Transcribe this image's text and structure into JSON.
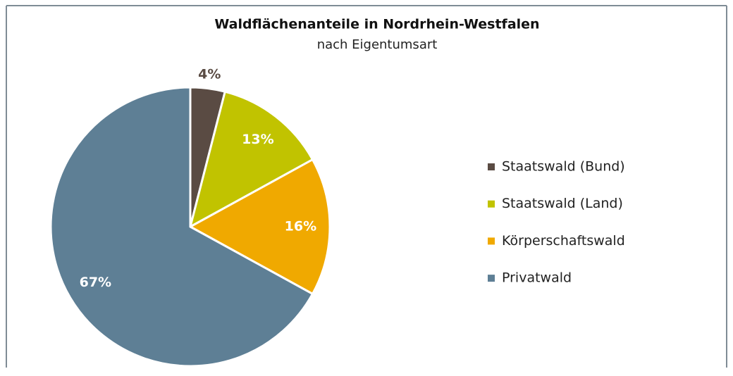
{
  "chart_data": {
    "type": "pie",
    "title": "Waldflächenanteile in Nordrhein-Westfalen",
    "subtitle": "nach Eigentumsart",
    "categories": [
      "Staatswald (Bund)",
      "Staatswald (Land)",
      "Körperschaftswald",
      "Privatwald"
    ],
    "values": [
      4,
      13,
      16,
      67
    ],
    "value_labels": [
      "4%",
      "13%",
      "16%",
      "67%"
    ],
    "colors": [
      "#5a4b43",
      "#c1c300",
      "#f0a900",
      "#5e7f95"
    ]
  }
}
